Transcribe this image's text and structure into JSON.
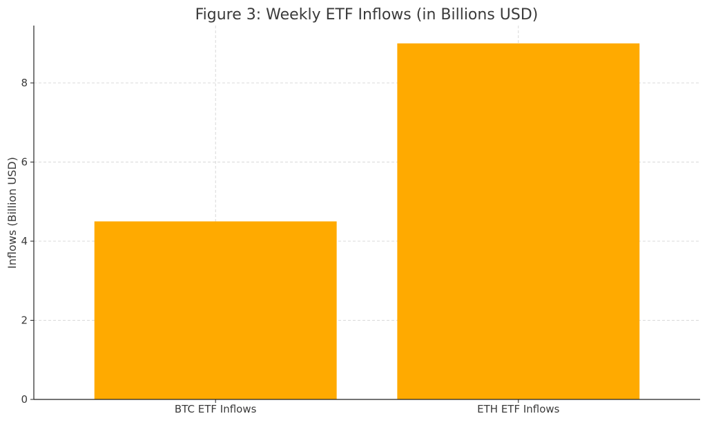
{
  "chart_data": {
    "type": "bar",
    "title": "Figure 3: Weekly ETF Inflows (in Billions USD)",
    "xlabel": "",
    "ylabel": "Inflows (Billion USD)",
    "categories": [
      "BTC ETF Inflows",
      "ETH ETF Inflows"
    ],
    "values": [
      4.5,
      9.0
    ],
    "ylim": [
      0,
      9.45
    ],
    "yticks": [
      0,
      2,
      4,
      6,
      8
    ],
    "bar_color": "#FFAA00",
    "grid": true,
    "legend": "none"
  }
}
